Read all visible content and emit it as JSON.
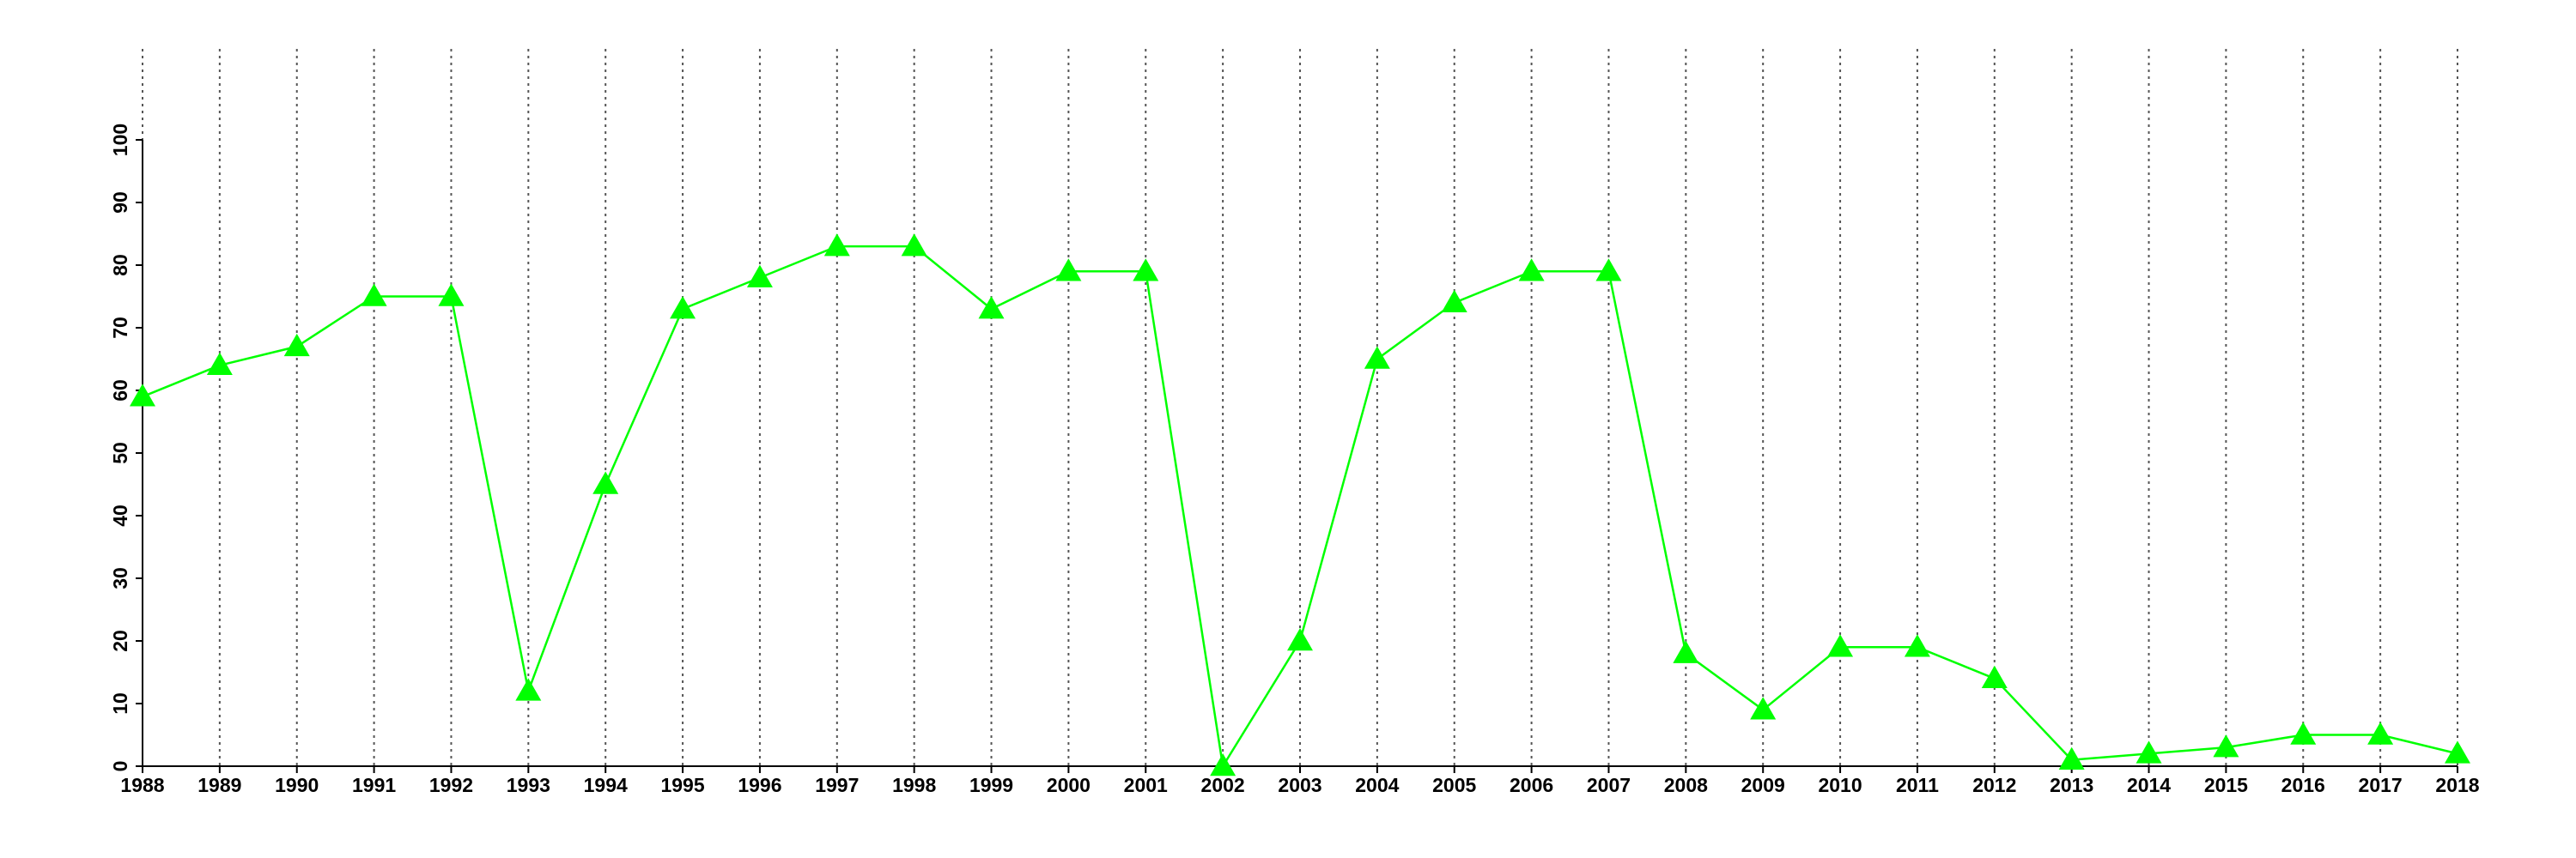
{
  "chart_data": {
    "type": "line",
    "x": [
      1988,
      1989,
      1990,
      1991,
      1992,
      1993,
      1994,
      1995,
      1996,
      1997,
      1998,
      1999,
      2000,
      2001,
      2002,
      2003,
      2004,
      2005,
      2006,
      2007,
      2008,
      2009,
      2010,
      2011,
      2012,
      2013,
      2014,
      2015,
      2016,
      2017,
      2018
    ],
    "series": [
      {
        "color": "#00ff00",
        "marker": "triangle",
        "values": [
          59,
          64,
          67,
          75,
          75,
          12,
          45,
          73,
          78,
          83,
          83,
          73,
          79,
          79,
          0,
          20,
          65,
          74,
          79,
          79,
          18,
          9,
          19,
          19,
          14,
          1,
          2,
          3,
          5,
          5,
          2
        ]
      }
    ],
    "xlim": [
      1988,
      2018
    ],
    "xticks": [
      1988,
      1989,
      1990,
      1991,
      1992,
      1993,
      1994,
      1995,
      1996,
      1997,
      1998,
      1999,
      2000,
      2001,
      2002,
      2003,
      2004,
      2005,
      2006,
      2007,
      2008,
      2009,
      2010,
      2011,
      2012,
      2013,
      2014,
      2015,
      2016,
      2017,
      2018
    ],
    "ylim": [
      0,
      100
    ],
    "yticks": [
      0,
      10,
      20,
      30,
      40,
      50,
      60,
      70,
      80,
      90,
      100
    ],
    "grid": "x"
  }
}
